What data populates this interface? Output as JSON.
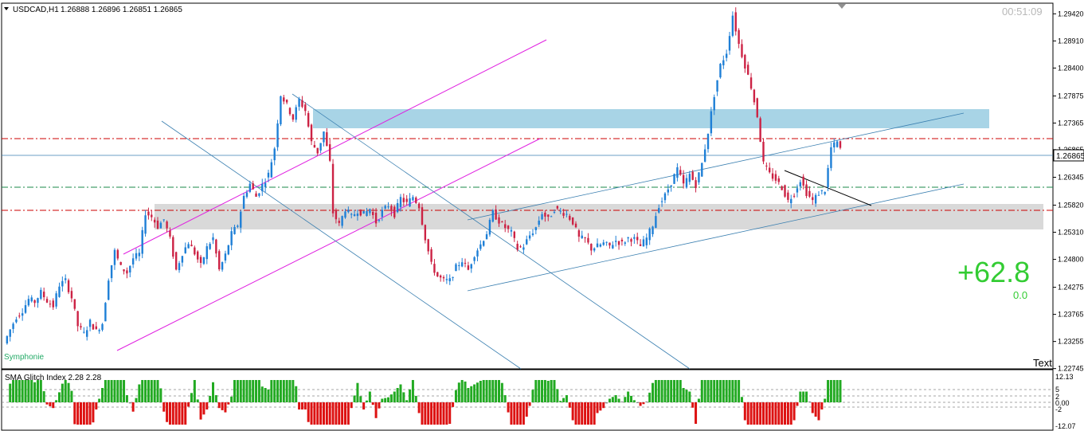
{
  "window": {
    "symbol_label": "USDCAD,H1",
    "ohlc_label": "1.26888 1.26896 1.26851 1.26865",
    "timer": "00:51:09",
    "indicator_name": "Symphonie",
    "corner_text": "Text"
  },
  "profit": {
    "value": "+62.8",
    "sub_value": "0.0"
  },
  "subwindow": {
    "title": "SMA Glitch Index 2.28 2.28",
    "levels": [
      "12.13",
      "5",
      "2",
      "0.00",
      "-2",
      "-12.07"
    ]
  },
  "colors": {
    "background": "#ffffff",
    "axis": "#000000",
    "bull_candle": "#1e7fd6",
    "bear_candle": "#cc2244",
    "resistance_zone": "#a8d4e6",
    "support_zone": "#d9d9d9",
    "red_level": "#cc0000",
    "green_level": "#1a8a4a",
    "channel_magenta": "#e020e0",
    "trend_blue": "#3a7fb0",
    "profit_green": "#33cc33",
    "histogram_green": "#22aa22",
    "histogram_red": "#dd1111",
    "histogram_gray": "#808080"
  },
  "chart_data": {
    "type": "candlestick",
    "symbol": "USDCAD",
    "timeframe": "H1",
    "current_price": 1.26865,
    "price_labels": [
      "1.29420",
      "1.28910",
      "1.28400",
      "1.27875",
      "1.27365",
      "1.26865",
      "1.26345",
      "1.25820",
      "1.25310",
      "1.24800",
      "1.24275",
      "1.23765",
      "1.23255",
      "1.22745"
    ],
    "ylim": [
      1.2274,
      1.2962
    ],
    "close_path": [
      [
        0,
        1.2322
      ],
      [
        2,
        1.2348
      ],
      [
        4,
        1.2372
      ],
      [
        6,
        1.2384
      ],
      [
        8,
        1.2405
      ],
      [
        10,
        1.24
      ],
      [
        12,
        1.2418
      ],
      [
        14,
        1.2402
      ],
      [
        16,
        1.2392
      ],
      [
        18,
        1.2432
      ],
      [
        20,
        1.244
      ],
      [
        22,
        1.2408
      ],
      [
        24,
        1.2355
      ],
      [
        26,
        1.234
      ],
      [
        28,
        1.2362
      ],
      [
        30,
        1.2345
      ],
      [
        32,
        1.236
      ],
      [
        34,
        1.2445
      ],
      [
        36,
        1.2495
      ],
      [
        38,
        1.2465
      ],
      [
        40,
        1.2455
      ],
      [
        42,
        1.2482
      ],
      [
        44,
        1.249
      ],
      [
        46,
        1.2568
      ],
      [
        48,
        1.256
      ],
      [
        50,
        1.2542
      ],
      [
        52,
        1.2555
      ],
      [
        54,
        1.2518
      ],
      [
        56,
        1.246
      ],
      [
        58,
        1.2492
      ],
      [
        60,
        1.2512
      ],
      [
        62,
        1.2492
      ],
      [
        64,
        1.2468
      ],
      [
        66,
        1.2502
      ],
      [
        68,
        1.252
      ],
      [
        70,
        1.246
      ],
      [
        72,
        1.2488
      ],
      [
        74,
        1.2528
      ],
      [
        76,
        1.2545
      ],
      [
        78,
        1.2598
      ],
      [
        80,
        1.2622
      ],
      [
        82,
        1.2598
      ],
      [
        84,
        1.262
      ],
      [
        86,
        1.264
      ],
      [
        88,
        1.269
      ],
      [
        90,
        1.279
      ],
      [
        92,
        1.277
      ],
      [
        94,
        1.2745
      ],
      [
        96,
        1.278
      ],
      [
        98,
        1.276
      ],
      [
        100,
        1.27
      ],
      [
        102,
        1.2682
      ],
      [
        104,
        1.272
      ],
      [
        106,
        1.2662
      ],
      [
        107,
        1.2568
      ],
      [
        109,
        1.2545
      ],
      [
        111,
        1.2575
      ],
      [
        113,
        1.256
      ],
      [
        115,
        1.2572
      ],
      [
        117,
        1.2565
      ],
      [
        119,
        1.2575
      ],
      [
        121,
        1.255
      ],
      [
        123,
        1.257
      ],
      [
        125,
        1.2582
      ],
      [
        127,
        1.2565
      ],
      [
        129,
        1.2595
      ],
      [
        131,
        1.2585
      ],
      [
        133,
        1.2598
      ],
      [
        135,
        1.258
      ],
      [
        137,
        1.252
      ],
      [
        139,
        1.247
      ],
      [
        141,
        1.2448
      ],
      [
        143,
        1.244
      ],
      [
        145,
        1.244
      ],
      [
        147,
        1.2465
      ],
      [
        149,
        1.2478
      ],
      [
        151,
        1.246
      ],
      [
        153,
        1.249
      ],
      [
        155,
        1.2508
      ],
      [
        157,
        1.253
      ],
      [
        159,
        1.2568
      ],
      [
        161,
        1.2552
      ],
      [
        163,
        1.254
      ],
      [
        165,
        1.253
      ],
      [
        167,
        1.25
      ],
      [
        169,
        1.2505
      ],
      [
        171,
        1.2525
      ],
      [
        173,
        1.254
      ],
      [
        175,
        1.2568
      ],
      [
        177,
        1.2555
      ],
      [
        179,
        1.2575
      ],
      [
        181,
        1.257
      ],
      [
        183,
        1.2565
      ],
      [
        185,
        1.255
      ],
      [
        187,
        1.252
      ],
      [
        189,
        1.2518
      ],
      [
        191,
        1.25
      ],
      [
        193,
        1.2505
      ],
      [
        195,
        1.251
      ],
      [
        197,
        1.2505
      ],
      [
        199,
        1.2515
      ],
      [
        201,
        1.251
      ],
      [
        203,
        1.252
      ],
      [
        205,
        1.2518
      ],
      [
        207,
        1.2505
      ],
      [
        209,
        1.252
      ],
      [
        211,
        1.2545
      ],
      [
        213,
        1.2582
      ],
      [
        215,
        1.26
      ],
      [
        217,
        1.2625
      ],
      [
        219,
        1.265
      ],
      [
        221,
        1.262
      ],
      [
        223,
        1.264
      ],
      [
        225,
        1.262
      ],
      [
        227,
        1.266
      ],
      [
        229,
        1.272
      ],
      [
        231,
        1.279
      ],
      [
        233,
        1.2845
      ],
      [
        235,
        1.287
      ],
      [
        237,
        1.294
      ],
      [
        239,
        1.2885
      ],
      [
        241,
        1.2845
      ],
      [
        243,
        1.2805
      ],
      [
        245,
        1.275
      ],
      [
        247,
        1.266
      ],
      [
        249,
        1.264
      ],
      [
        251,
        1.263
      ],
      [
        253,
        1.2615
      ],
      [
        255,
        1.259
      ],
      [
        257,
        1.2605
      ],
      [
        259,
        1.263
      ],
      [
        261,
        1.2605
      ],
      [
        263,
        1.259
      ],
      [
        265,
        1.2605
      ],
      [
        267,
        1.261
      ],
      [
        269,
        1.269
      ],
      [
        271,
        1.27
      ],
      [
        272,
        1.2686
      ]
    ]
  }
}
